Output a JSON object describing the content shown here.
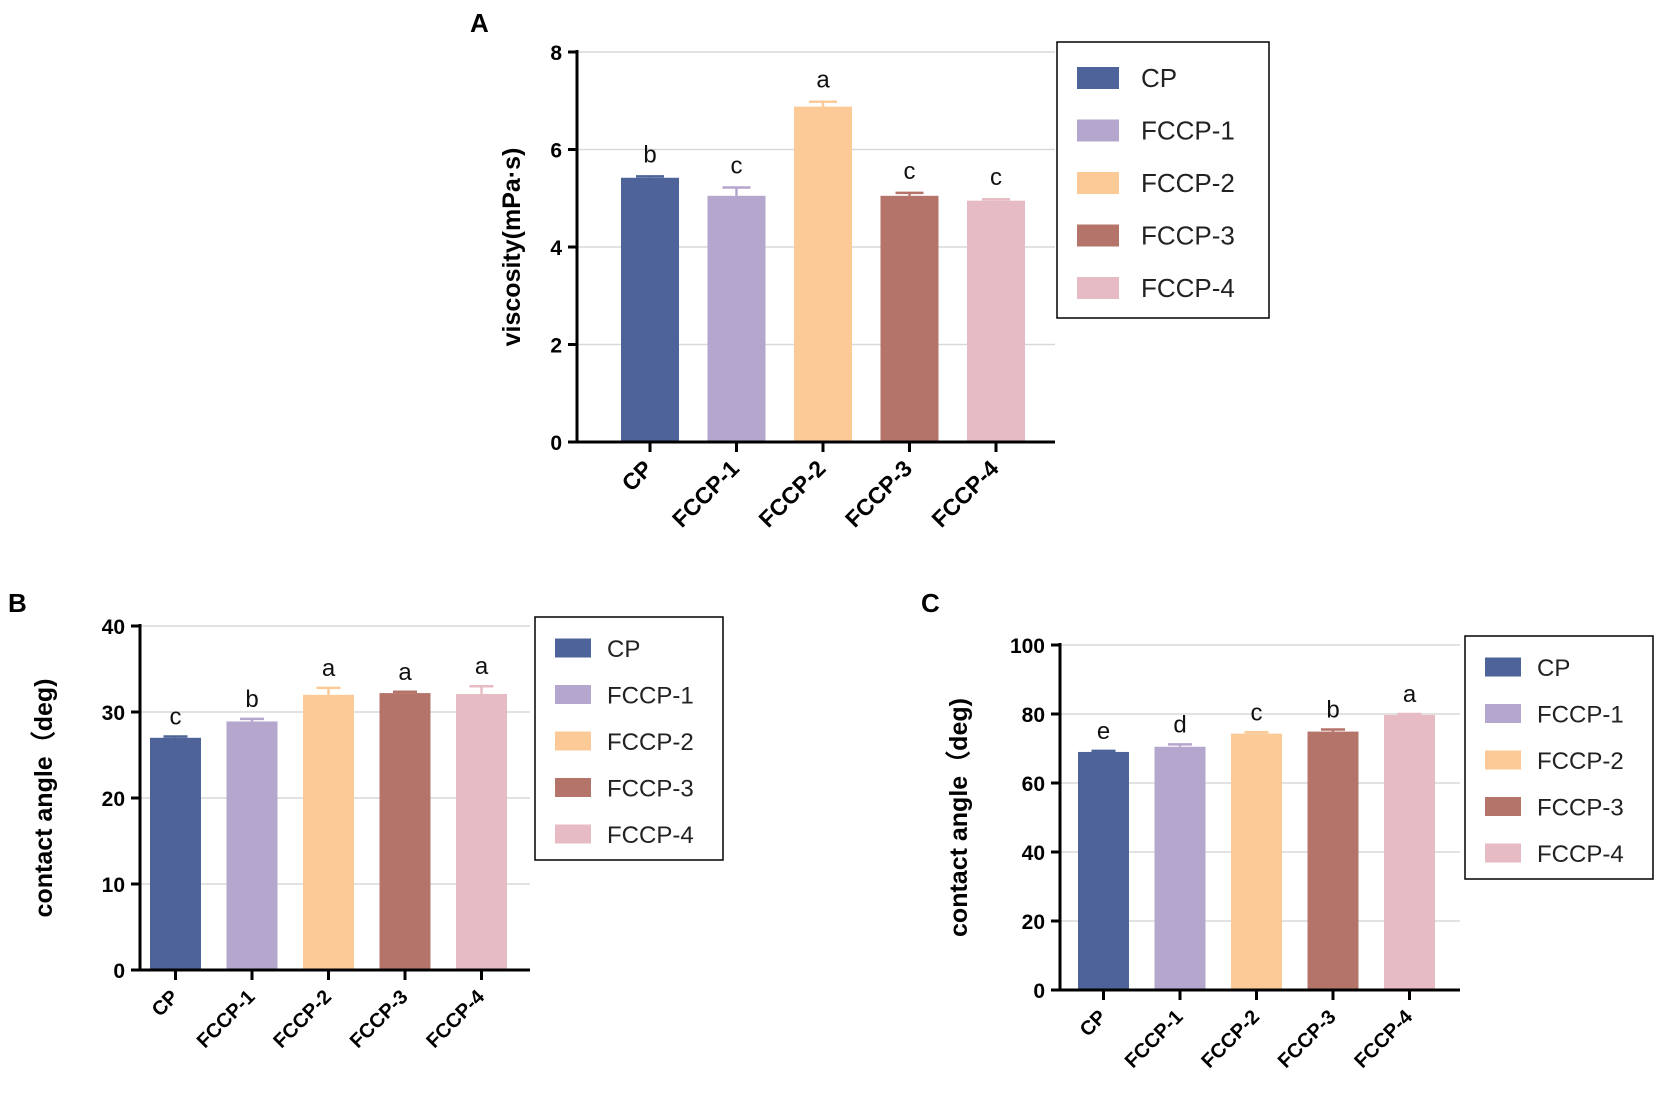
{
  "colors": {
    "CP": "#4d6399",
    "FCCP-1": "#b5a6cd",
    "FCCP-2": "#fbca97",
    "FCCP-3": "#b4746a",
    "FCCP-4": "#e7bbc4"
  },
  "chart_data": [
    {
      "panel": "A",
      "type": "bar",
      "title": "",
      "ylabel": "viscosity(mPa·s)",
      "xlabel": "",
      "categories": [
        "CP",
        "FCCP-1",
        "FCCP-2",
        "FCCP-3",
        "FCCP-4"
      ],
      "values": [
        5.42,
        5.05,
        6.88,
        5.05,
        4.95
      ],
      "errors": [
        0.03,
        0.17,
        0.1,
        0.06,
        0.03
      ],
      "significance": [
        "b",
        "c",
        "a",
        "c",
        "c"
      ],
      "ylim": [
        0,
        8
      ],
      "yticks": [
        "0",
        "2",
        "4",
        "6",
        "8"
      ],
      "grid": true,
      "legend": [
        "CP",
        "FCCP-1",
        "FCCP-2",
        "FCCP-3",
        "FCCP-4"
      ],
      "legend_position": "right"
    },
    {
      "panel": "B",
      "type": "bar",
      "title": "",
      "ylabel": "contact angle（deg)",
      "xlabel": "",
      "categories": [
        "CP",
        "FCCP-1",
        "FCCP-2",
        "FCCP-3",
        "FCCP-4"
      ],
      "values": [
        27,
        28.9,
        32,
        32.2,
        32.1
      ],
      "errors": [
        0.15,
        0.3,
        0.8,
        0.15,
        0.9
      ],
      "significance": [
        "c",
        "b",
        "a",
        "a",
        "a"
      ],
      "ylim": [
        0,
        40
      ],
      "yticks": [
        "0",
        "10",
        "20",
        "30",
        "40"
      ],
      "grid": true,
      "legend": [
        "CP",
        "FCCP-1",
        "FCCP-2",
        "FCCP-3",
        "FCCP-4"
      ],
      "legend_position": "right"
    },
    {
      "panel": "C",
      "type": "bar",
      "title": "",
      "ylabel": "contact angle（deg)",
      "xlabel": "",
      "categories": [
        "CP",
        "FCCP-1",
        "FCCP-2",
        "FCCP-3",
        "FCCP-4"
      ],
      "values": [
        69,
        70.5,
        74.3,
        74.9,
        79.7
      ],
      "errors": [
        0.3,
        0.7,
        0.4,
        0.6,
        0.3
      ],
      "significance": [
        "e",
        "d",
        "c",
        "b",
        "a"
      ],
      "ylim": [
        0,
        100
      ],
      "yticks": [
        "0",
        "20",
        "40",
        "60",
        "80",
        "100"
      ],
      "grid": true,
      "legend": [
        "CP",
        "FCCP-1",
        "FCCP-2",
        "FCCP-3",
        "FCCP-4"
      ],
      "legend_position": "right"
    }
  ]
}
